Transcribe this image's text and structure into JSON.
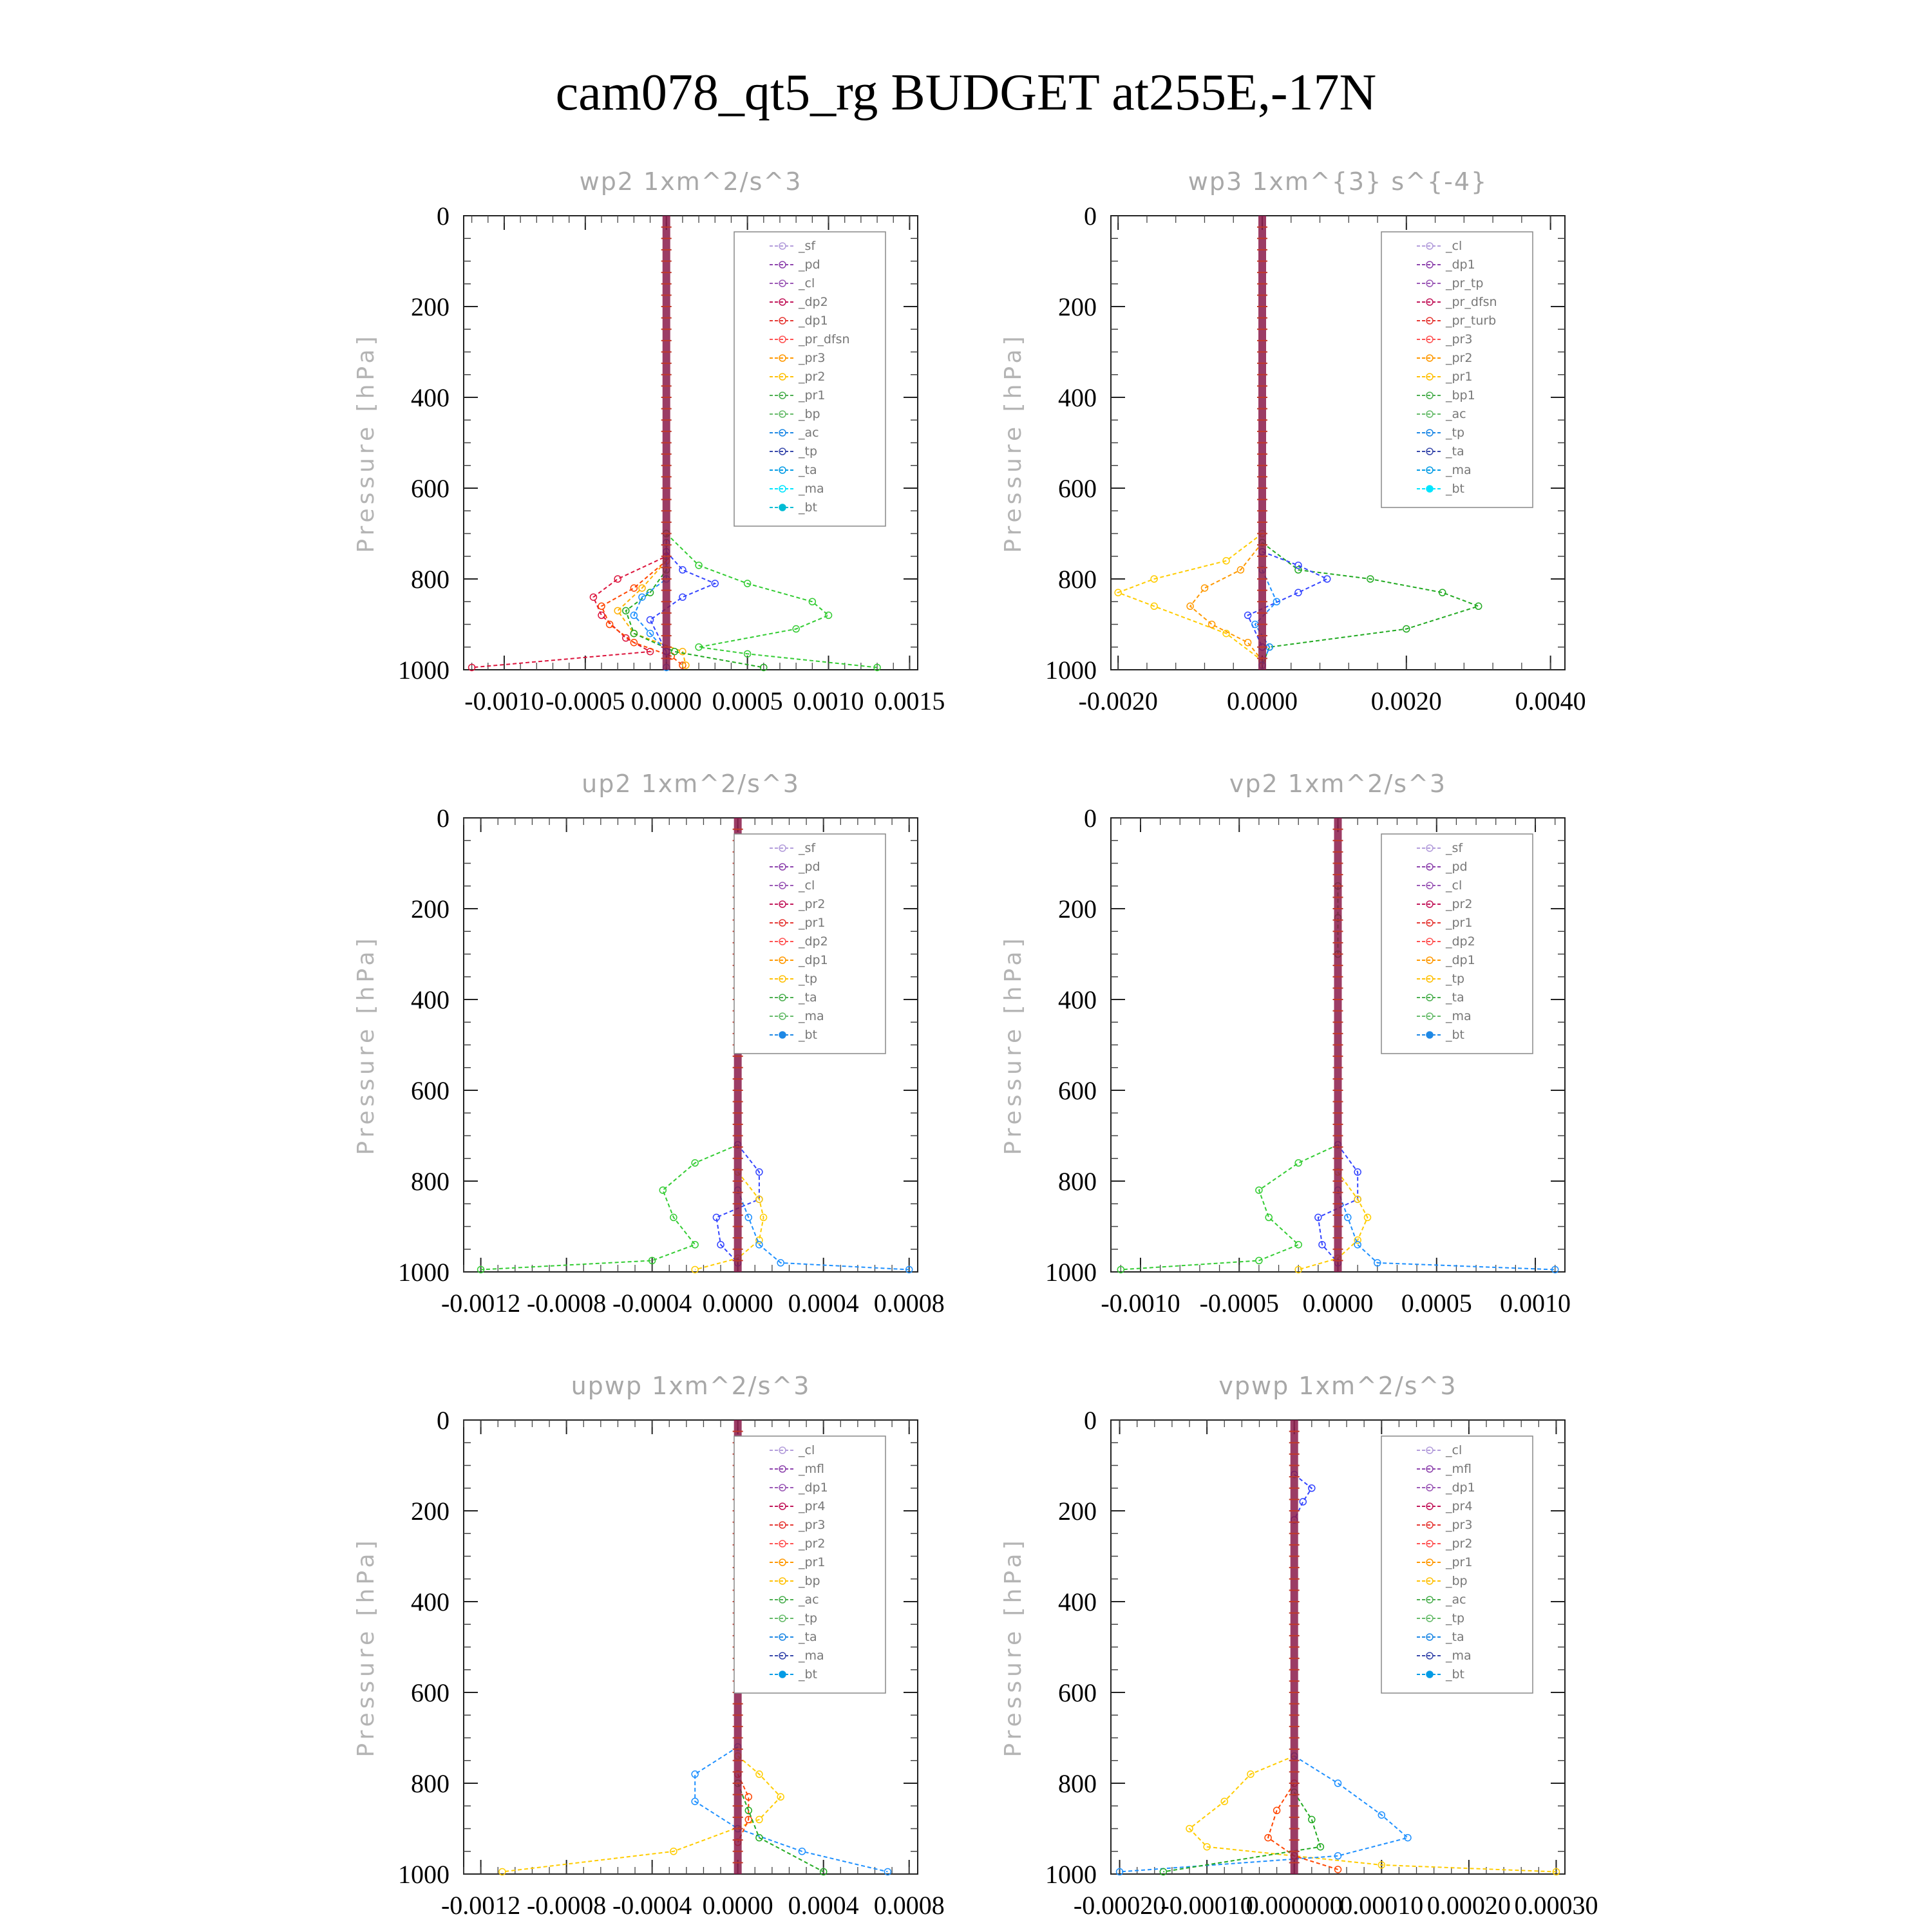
{
  "figure_title": "cam078_qt5_rg  BUDGET at255E,-17N",
  "chart_data": [
    {
      "type": "line",
      "title": "wp2   1xm^2/s^3",
      "ylabel": "Pressure [hPa]",
      "ylim": [
        1000,
        0
      ],
      "xlim": [
        -0.00125,
        0.00155
      ],
      "yticks": [
        0,
        200,
        400,
        600,
        800,
        1000
      ],
      "xticks": [
        {
          "v": -0.001,
          "t": "-0.0010"
        },
        {
          "v": -0.0005,
          "t": "-0.0005"
        },
        {
          "v": 0.0,
          "t": "0.0000"
        },
        {
          "v": 0.0005,
          "t": "0.0005"
        },
        {
          "v": 0.001,
          "t": "0.0010"
        },
        {
          "v": 0.0015,
          "t": "0.0015"
        }
      ],
      "legend": [
        "_sf",
        "_pd",
        "_cl",
        "_dp2",
        "_dp1",
        "_pr_dfsn",
        "_pr3",
        "_pr2",
        "_pr1",
        "_bp",
        "_ac",
        "_tp",
        "_ta",
        "_ma",
        "_bt"
      ],
      "series": [
        {
          "name": "_dp2",
          "color": "#dc143c",
          "x": [
            0,
            0,
            -0.0003,
            -0.00045,
            -0.0004,
            -0.00025,
            -0.0001,
            -0.0012
          ],
          "y": [
            700,
            750,
            800,
            840,
            880,
            930,
            960,
            995
          ]
        },
        {
          "name": "_dp1",
          "color": "#ff4500",
          "x": [
            0,
            0,
            -0.0002,
            -0.0004,
            -0.00035,
            -0.0002,
            3e-05,
            0.0001
          ],
          "y": [
            700,
            760,
            820,
            860,
            900,
            940,
            970,
            990
          ]
        },
        {
          "name": "_pr2",
          "color": "#ffb000",
          "x": [
            0,
            0,
            -0.00015,
            -0.0003,
            -0.0002,
            0.0001,
            0.00012
          ],
          "y": [
            720,
            760,
            820,
            870,
            920,
            960,
            990
          ]
        },
        {
          "name": "_bp",
          "color": "#22aa22",
          "x": [
            0,
            0,
            -0.0001,
            -0.00025,
            -0.0002,
            5e-05,
            0.0006
          ],
          "y": [
            720,
            780,
            830,
            870,
            920,
            960,
            995
          ]
        },
        {
          "name": "_ac",
          "color": "#33cc33",
          "x": [
            0,
            0.0002,
            0.0005,
            0.0009,
            0.001,
            0.0008,
            0.0002,
            0.0005,
            0.0013
          ],
          "y": [
            700,
            770,
            810,
            850,
            880,
            910,
            950,
            965,
            995
          ]
        },
        {
          "name": "_tp",
          "color": "#1e90ff",
          "x": [
            0,
            0,
            -0.00015,
            -0.0002,
            -0.0001,
            0,
            0
          ],
          "y": [
            720,
            800,
            840,
            880,
            920,
            960,
            995
          ]
        },
        {
          "name": "_ta",
          "color": "#3344ff",
          "x": [
            0,
            0.0001,
            0.0003,
            0.0001,
            -0.0001,
            0
          ],
          "y": [
            740,
            780,
            810,
            840,
            890,
            960
          ]
        }
      ]
    },
    {
      "type": "line",
      "title": "wp3   1xm^{3} s^{-4}",
      "ylabel": "Pressure [hPa]",
      "ylim": [
        1000,
        0
      ],
      "xlim": [
        -0.0021,
        0.0042
      ],
      "yticks": [
        0,
        200,
        400,
        600,
        800,
        1000
      ],
      "xticks": [
        {
          "v": -0.002,
          "t": "-0.0020"
        },
        {
          "v": 0.0,
          "t": "0.0000"
        },
        {
          "v": 0.002,
          "t": "0.0020"
        },
        {
          "v": 0.004,
          "t": "0.0040"
        }
      ],
      "legend": [
        "_cl",
        "_dp1",
        "_pr_tp",
        "_pr_dfsn",
        "_pr_turb",
        "_pr3",
        "_pr2",
        "_pr1",
        "_bp1",
        "_ac",
        "_tp",
        "_ta",
        "_ma",
        "_bt"
      ],
      "series": [
        {
          "name": "_pr1",
          "color": "#ffcc00",
          "x": [
            0,
            -0.0005,
            -0.0015,
            -0.002,
            -0.0015,
            -0.0005,
            0
          ],
          "y": [
            700,
            760,
            800,
            830,
            860,
            920,
            980
          ]
        },
        {
          "name": "_pr2",
          "color": "#ff9900",
          "x": [
            0,
            -0.0003,
            -0.0008,
            -0.001,
            -0.0007,
            -0.0002,
            0
          ],
          "y": [
            720,
            780,
            820,
            860,
            900,
            940,
            980
          ]
        },
        {
          "name": "_bp1",
          "color": "#22aa22",
          "x": [
            0,
            0.0005,
            0.0015,
            0.0025,
            0.003,
            0.002,
            0.0001,
            0
          ],
          "y": [
            720,
            780,
            800,
            830,
            860,
            910,
            950,
            990
          ]
        },
        {
          "name": "_ta",
          "color": "#3344ff",
          "x": [
            0,
            0.0005,
            0.0009,
            0.0005,
            -0.0002,
            0
          ],
          "y": [
            740,
            770,
            800,
            830,
            880,
            950
          ]
        },
        {
          "name": "_tp",
          "color": "#1e90ff",
          "x": [
            0,
            0.0002,
            -0.0001,
            0.0001,
            0
          ],
          "y": [
            780,
            850,
            900,
            950,
            990
          ]
        }
      ]
    },
    {
      "type": "line",
      "title": "up2   1xm^2/s^3",
      "ylabel": "Pressure [hPa]",
      "ylim": [
        1000,
        0
      ],
      "xlim": [
        -0.00128,
        0.00084
      ],
      "yticks": [
        0,
        200,
        400,
        600,
        800,
        1000
      ],
      "xticks": [
        {
          "v": -0.0012,
          "t": "-0.0012"
        },
        {
          "v": -0.0008,
          "t": "-0.0008"
        },
        {
          "v": -0.0004,
          "t": "-0.0004"
        },
        {
          "v": 0.0,
          "t": "0.0000"
        },
        {
          "v": 0.0004,
          "t": "0.0004"
        },
        {
          "v": 0.0008,
          "t": "0.0008"
        }
      ],
      "legend": [
        "_sf",
        "_pd",
        "_cl",
        "_pr2",
        "_pr1",
        "_dp2",
        "_dp1",
        "_tp",
        "_ta",
        "_ma",
        "_bt"
      ],
      "series": [
        {
          "name": "_dp1",
          "color": "#33cc33",
          "x": [
            0,
            -0.0002,
            -0.00035,
            -0.0003,
            -0.0002,
            -0.0004,
            -0.0012
          ],
          "y": [
            720,
            760,
            820,
            880,
            940,
            975,
            995
          ]
        },
        {
          "name": "_ta",
          "color": "#3344ff",
          "x": [
            0,
            0.0001,
            0.0001,
            -0.0001,
            -8e-05,
            0
          ],
          "y": [
            720,
            780,
            840,
            880,
            940,
            980
          ]
        },
        {
          "name": "_pr1",
          "color": "#ffcc00",
          "x": [
            0,
            0.0001,
            0.00012,
            0.0001,
            0,
            -0.0002
          ],
          "y": [
            780,
            840,
            880,
            930,
            970,
            995
          ]
        },
        {
          "name": "_tp",
          "color": "#1e90ff",
          "x": [
            0,
            5e-05,
            0.0001,
            0.0002,
            0.0008
          ],
          "y": [
            820,
            880,
            940,
            980,
            995
          ]
        },
        {
          "name": "_dp2",
          "color": "#22aa22",
          "x": [
            0,
            0,
            0
          ],
          "y": [
            150,
            220,
            300
          ]
        }
      ]
    },
    {
      "type": "line",
      "title": "vp2   1xm^2/s^3",
      "ylabel": "Pressure [hPa]",
      "ylim": [
        1000,
        0
      ],
      "xlim": [
        -0.00115,
        0.00115
      ],
      "yticks": [
        0,
        200,
        400,
        600,
        800,
        1000
      ],
      "xticks": [
        {
          "v": -0.001,
          "t": "-0.0010"
        },
        {
          "v": -0.0005,
          "t": "-0.0005"
        },
        {
          "v": 0.0,
          "t": "0.0000"
        },
        {
          "v": 0.0005,
          "t": "0.0005"
        },
        {
          "v": 0.001,
          "t": "0.0010"
        }
      ],
      "legend": [
        "_sf",
        "_pd",
        "_cl",
        "_pr2",
        "_pr1",
        "_dp2",
        "_dp1",
        "_tp",
        "_ta",
        "_ma",
        "_bt"
      ],
      "series": [
        {
          "name": "_dp1",
          "color": "#33cc33",
          "x": [
            0,
            -0.0002,
            -0.0004,
            -0.00035,
            -0.0002,
            -0.0004,
            -0.0011
          ],
          "y": [
            720,
            760,
            820,
            880,
            940,
            975,
            995
          ]
        },
        {
          "name": "_ta",
          "color": "#3344ff",
          "x": [
            0,
            0.0001,
            0.0001,
            -0.0001,
            -8e-05,
            0
          ],
          "y": [
            720,
            780,
            840,
            880,
            940,
            980
          ]
        },
        {
          "name": "_pr1",
          "color": "#ffcc00",
          "x": [
            0,
            0.0001,
            0.00015,
            0.0001,
            0,
            -0.0002
          ],
          "y": [
            780,
            840,
            880,
            930,
            970,
            995
          ]
        },
        {
          "name": "_tp",
          "color": "#1e90ff",
          "x": [
            0,
            5e-05,
            0.0001,
            0.0002,
            0.0011
          ],
          "y": [
            820,
            880,
            940,
            980,
            995
          ]
        },
        {
          "name": "_dp2",
          "color": "#22aa22",
          "x": [
            0,
            0,
            0
          ],
          "y": [
            150,
            220,
            300
          ]
        }
      ]
    },
    {
      "type": "line",
      "title": "upwp   1xm^2/s^3",
      "ylabel": "Pressure [hPa]",
      "ylim": [
        1000,
        0
      ],
      "xlim": [
        -0.00128,
        0.00084
      ],
      "yticks": [
        0,
        200,
        400,
        600,
        800,
        1000
      ],
      "xticks": [
        {
          "v": -0.0012,
          "t": "-0.0012"
        },
        {
          "v": -0.0008,
          "t": "-0.0008"
        },
        {
          "v": -0.0004,
          "t": "-0.0004"
        },
        {
          "v": 0.0,
          "t": "0.0000"
        },
        {
          "v": 0.0004,
          "t": "0.0004"
        },
        {
          "v": 0.0008,
          "t": "0.0008"
        }
      ],
      "legend": [
        "_cl",
        "_mfl",
        "_dp1",
        "_pr4",
        "_pr3",
        "_pr2",
        "_pr1",
        "_bp",
        "_ac",
        "_tp",
        "_ta",
        "_ma",
        "_bt"
      ],
      "series": [
        {
          "name": "_tp",
          "color": "#1e90ff",
          "x": [
            0,
            -0.0002,
            -0.0002,
            0,
            0.0003,
            0.0007
          ],
          "y": [
            720,
            780,
            840,
            900,
            950,
            995
          ]
        },
        {
          "name": "_pr1",
          "color": "#ffcc00",
          "x": [
            0,
            0.0001,
            0.0002,
            0.0001,
            -0.0003,
            -0.0011
          ],
          "y": [
            740,
            780,
            830,
            880,
            950,
            995
          ]
        },
        {
          "name": "_pr4",
          "color": "#ff4500",
          "x": [
            0,
            5e-05,
            5e-05,
            0
          ],
          "y": [
            780,
            830,
            880,
            930
          ]
        },
        {
          "name": "_bp",
          "color": "#22aa22",
          "x": [
            0,
            5e-05,
            0.0001,
            0.0004
          ],
          "y": [
            800,
            860,
            920,
            995
          ]
        }
      ]
    },
    {
      "type": "line",
      "title": "vpwp   1xm^2/s^3",
      "ylabel": "Pressure [hPa]",
      "ylim": [
        1000,
        0
      ],
      "xlim": [
        -0.00021,
        0.00031
      ],
      "yticks": [
        0,
        200,
        400,
        600,
        800,
        1000
      ],
      "xticks": [
        {
          "v": -0.0002,
          "t": "-0.00020"
        },
        {
          "v": -0.0001,
          "t": "-0.00010"
        },
        {
          "v": 0.0,
          "t": "0.000000"
        },
        {
          "v": 0.0001,
          "t": "0.00010"
        },
        {
          "v": 0.0002,
          "t": "0.00020"
        },
        {
          "v": 0.0003,
          "t": "0.00030"
        }
      ],
      "legend": [
        "_cl",
        "_mfl",
        "_dp1",
        "_pr4",
        "_pr3",
        "_pr2",
        "_pr1",
        "_bp",
        "_ac",
        "_tp",
        "_ta",
        "_ma",
        "_bt"
      ],
      "series": [
        {
          "name": "_pr1",
          "color": "#ffcc00",
          "x": [
            0,
            -5e-05,
            -8e-05,
            -0.00012,
            -0.0001,
            0.0001,
            0.0003
          ],
          "y": [
            740,
            780,
            840,
            900,
            940,
            980,
            995
          ]
        },
        {
          "name": "_tp",
          "color": "#1e90ff",
          "x": [
            0,
            5e-05,
            0.0001,
            0.00013,
            5e-05,
            -0.0002
          ],
          "y": [
            740,
            800,
            870,
            920,
            960,
            995
          ]
        },
        {
          "name": "_pr4",
          "color": "#ff4500",
          "x": [
            0,
            -2e-05,
            -3e-05,
            0,
            5e-05
          ],
          "y": [
            800,
            860,
            920,
            960,
            990
          ]
        },
        {
          "name": "_bp",
          "color": "#22aa22",
          "x": [
            0,
            2e-05,
            3e-05,
            -0.00015
          ],
          "y": [
            820,
            880,
            940,
            995
          ]
        },
        {
          "name": "_ta",
          "color": "#3344ff",
          "x": [
            0,
            2e-05,
            1e-05,
            0
          ],
          "y": [
            120,
            150,
            180,
            220
          ]
        }
      ]
    }
  ]
}
